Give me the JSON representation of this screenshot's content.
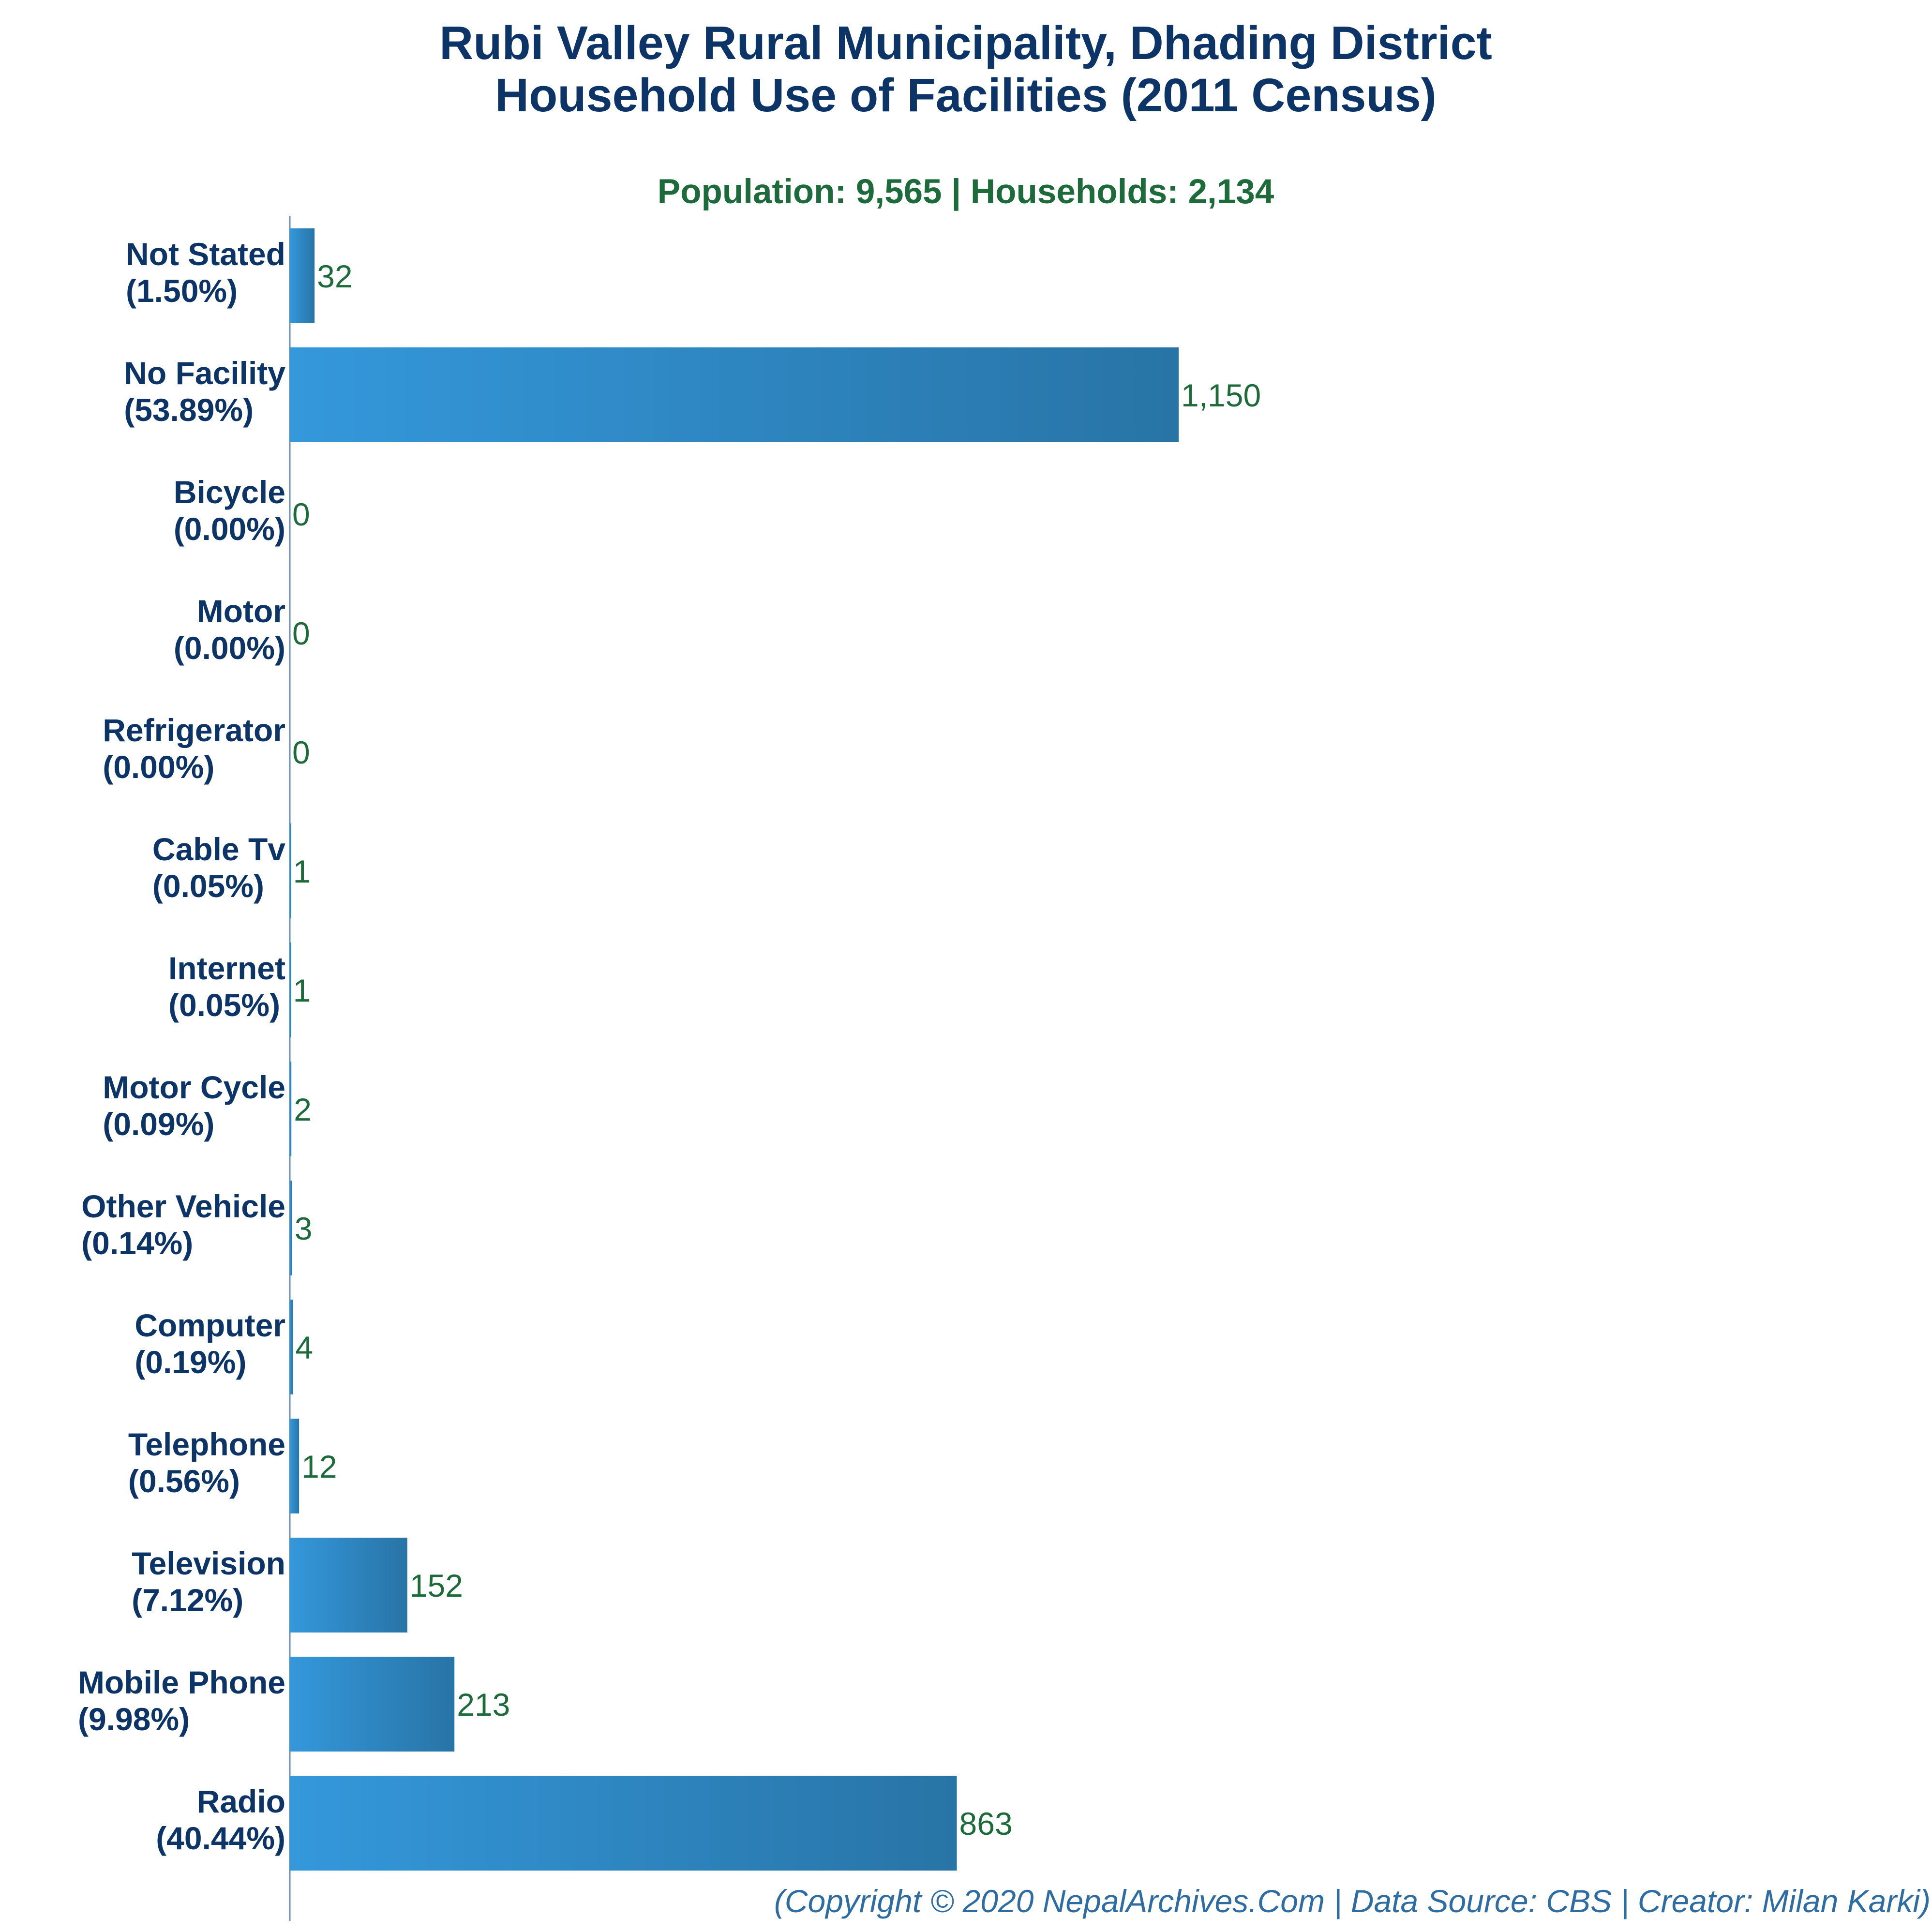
{
  "colors": {
    "title": "#0d3466",
    "subtitle": "#1d6b3a",
    "category_label": "#0d3466",
    "value_label": "#1d6b3a",
    "bar_start": "#3498db",
    "bar_end": "#2874a6",
    "axis": "#6a8fb0",
    "footer": "#2e6ca4"
  },
  "chart_data": {
    "type": "bar",
    "orientation": "horizontal",
    "title": [
      "Rubi Valley Rural Municipality, Dhading District",
      "Household Use of Facilities (2011 Census)"
    ],
    "subtitle": "Population: 9,565 | Households: 2,134",
    "categories": [
      {
        "name": "Not Stated",
        "percent": "(1.50%)",
        "value": 32,
        "label": "32"
      },
      {
        "name": "No Facility",
        "percent": "(53.89%)",
        "value": 1150,
        "label": "1,150"
      },
      {
        "name": "Bicycle",
        "percent": "(0.00%)",
        "value": 0,
        "label": "0"
      },
      {
        "name": "Motor",
        "percent": "(0.00%)",
        "value": 0,
        "label": "0"
      },
      {
        "name": "Refrigerator",
        "percent": "(0.00%)",
        "value": 0,
        "label": "0"
      },
      {
        "name": "Cable Tv",
        "percent": "(0.05%)",
        "value": 1,
        "label": "1"
      },
      {
        "name": "Internet",
        "percent": "(0.05%)",
        "value": 1,
        "label": "1"
      },
      {
        "name": "Motor Cycle",
        "percent": "(0.09%)",
        "value": 2,
        "label": "2"
      },
      {
        "name": "Other Vehicle",
        "percent": "(0.14%)",
        "value": 3,
        "label": "3"
      },
      {
        "name": "Computer",
        "percent": "(0.19%)",
        "value": 4,
        "label": "4"
      },
      {
        "name": "Telephone",
        "percent": "(0.56%)",
        "value": 12,
        "label": "12"
      },
      {
        "name": "Television",
        "percent": "(7.12%)",
        "value": 152,
        "label": "152"
      },
      {
        "name": "Mobile Phone",
        "percent": "(9.98%)",
        "value": 213,
        "label": "213"
      },
      {
        "name": "Radio",
        "percent": "(40.44%)",
        "value": 863,
        "label": "863"
      }
    ],
    "grid": false
  },
  "footer": "(Copyright © 2020 NepalArchives.Com | Data Source: CBS | Creator: Milan Karki)"
}
